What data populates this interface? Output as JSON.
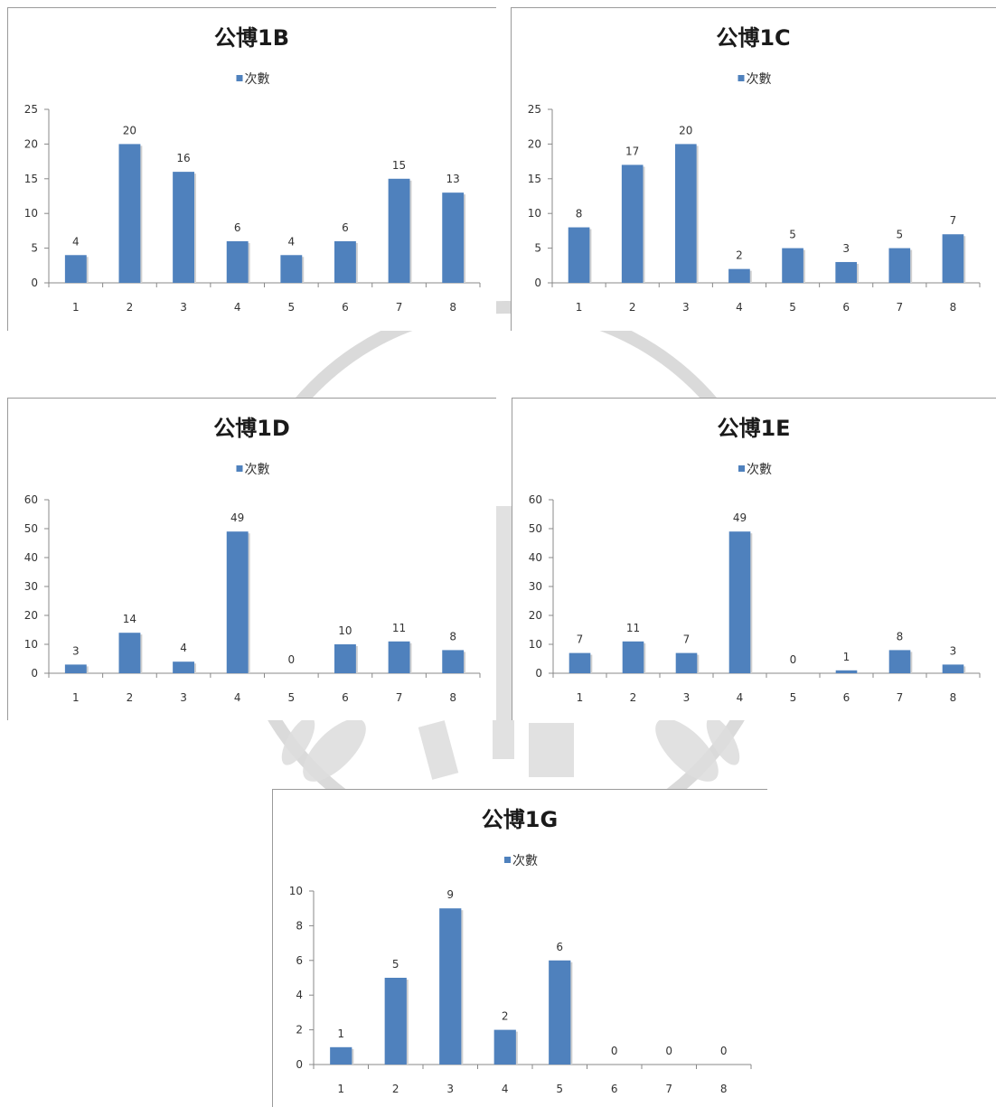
{
  "chart_data": [
    {
      "type": "bar",
      "title": "公博1B",
      "categories": [
        "1",
        "2",
        "3",
        "4",
        "5",
        "6",
        "7",
        "8"
      ],
      "series": [
        {
          "name": "次數",
          "values": [
            4,
            20,
            16,
            6,
            4,
            6,
            15,
            13
          ]
        }
      ],
      "ylim": [
        0,
        25
      ],
      "yticks": [
        0,
        5,
        10,
        15,
        20,
        25
      ],
      "legend": "top",
      "grid": false,
      "color": "#4f81bd"
    },
    {
      "type": "bar",
      "title": "公博1C",
      "categories": [
        "1",
        "2",
        "3",
        "4",
        "5",
        "6",
        "7",
        "8"
      ],
      "series": [
        {
          "name": "次數",
          "values": [
            8,
            17,
            20,
            2,
            5,
            3,
            5,
            7
          ]
        }
      ],
      "ylim": [
        0,
        25
      ],
      "yticks": [
        0,
        5,
        10,
        15,
        20,
        25
      ],
      "legend": "top",
      "grid": false,
      "color": "#4f81bd"
    },
    {
      "type": "bar",
      "title": "公博1D",
      "categories": [
        "1",
        "2",
        "3",
        "4",
        "5",
        "6",
        "7",
        "8"
      ],
      "series": [
        {
          "name": "次數",
          "values": [
            3,
            14,
            4,
            49,
            0,
            10,
            11,
            8
          ]
        }
      ],
      "ylim": [
        0,
        60
      ],
      "yticks": [
        0,
        10,
        20,
        30,
        40,
        50,
        60
      ],
      "legend": "top",
      "grid": false,
      "color": "#4f81bd"
    },
    {
      "type": "bar",
      "title": "公博1E",
      "categories": [
        "1",
        "2",
        "3",
        "4",
        "5",
        "6",
        "7",
        "8"
      ],
      "series": [
        {
          "name": "次數",
          "values": [
            7,
            11,
            7,
            49,
            0,
            1,
            8,
            3
          ]
        }
      ],
      "ylim": [
        0,
        60
      ],
      "yticks": [
        0,
        10,
        20,
        30,
        40,
        50,
        60
      ],
      "legend": "top",
      "grid": false,
      "color": "#4f81bd"
    },
    {
      "type": "bar",
      "title": "公博1G",
      "categories": [
        "1",
        "2",
        "3",
        "4",
        "5",
        "6",
        "7",
        "8"
      ],
      "series": [
        {
          "name": "次數",
          "values": [
            1,
            5,
            9,
            2,
            6,
            0,
            0,
            0
          ]
        }
      ],
      "ylim": [
        0,
        10
      ],
      "yticks": [
        0,
        2,
        4,
        6,
        8,
        10
      ],
      "legend": "top",
      "grid": false,
      "color": "#4f81bd"
    }
  ]
}
